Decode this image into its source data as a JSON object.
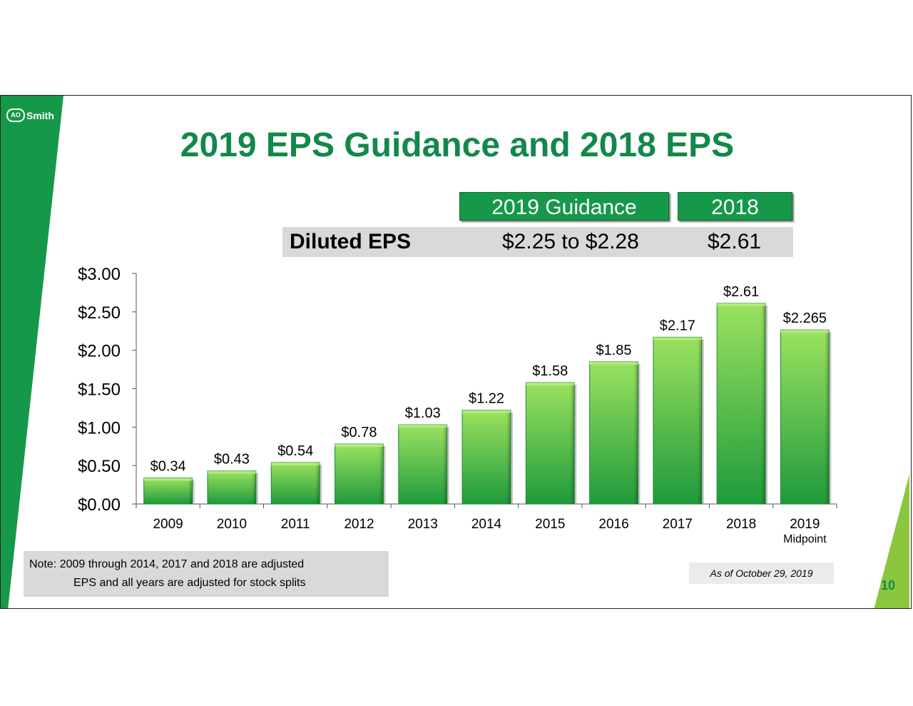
{
  "slide": {
    "logo_text": "Smith",
    "logo_mark": "AO",
    "title": "2019 EPS Guidance and 2018 EPS",
    "page_number": "10"
  },
  "eps_table": {
    "header_guidance": "2019 Guidance",
    "header_2018": "2018",
    "row_label": "Diluted EPS",
    "guidance_value": "$2.25 to $2.28",
    "value_2018": "$2.61"
  },
  "note": {
    "line1": "Note:  2009 through 2014, 2017 and 2018 are adjusted",
    "line2": "EPS and all years are adjusted for stock splits"
  },
  "as_of": "As of October 29, 2019",
  "colors": {
    "brand_green": "#12884a",
    "bar_top": "#92dc5a",
    "bar_bottom": "#1f9a3c"
  },
  "chart_data": {
    "type": "bar",
    "categories": [
      "2009",
      "2010",
      "2011",
      "2012",
      "2013",
      "2014",
      "2015",
      "2016",
      "2017",
      "2018",
      "2019"
    ],
    "category_sublabels": [
      "",
      "",
      "",
      "",
      "",
      "",
      "",
      "",
      "",
      "",
      "Midpoint"
    ],
    "values": [
      0.34,
      0.43,
      0.54,
      0.78,
      1.03,
      1.22,
      1.58,
      1.85,
      2.17,
      2.61,
      2.265
    ],
    "data_labels": [
      "$0.34",
      "$0.43",
      "$0.54",
      "$0.78",
      "$1.03",
      "$1.22",
      "$1.58",
      "$1.85",
      "$2.17",
      "$2.61",
      "$2.265"
    ],
    "y_ticks": [
      0,
      0.5,
      1.0,
      1.5,
      2.0,
      2.5,
      3.0
    ],
    "y_tick_labels": [
      "$0.00",
      "$0.50",
      "$1.00",
      "$1.50",
      "$2.00",
      "$2.50",
      "$3.00"
    ],
    "ylim": [
      0,
      3.0
    ],
    "grid": false,
    "legend": false
  }
}
